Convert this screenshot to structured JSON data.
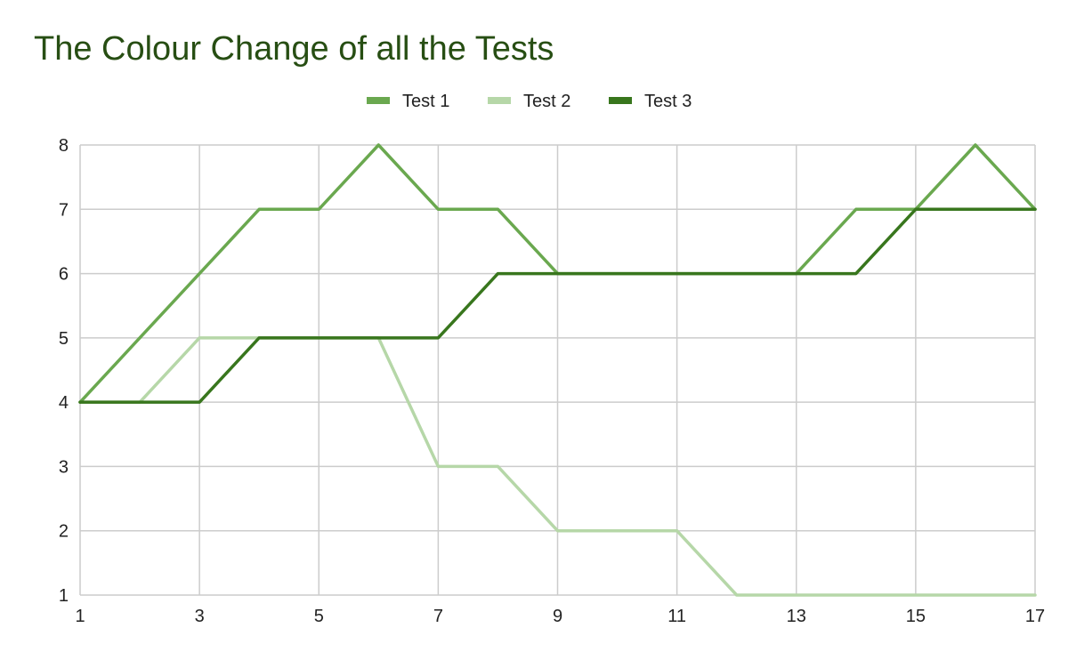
{
  "chart_data": {
    "type": "line",
    "title": "The Colour Change of all the Tests",
    "xlabel": "",
    "ylabel": "",
    "x": [
      1,
      2,
      3,
      4,
      5,
      6,
      7,
      8,
      9,
      10,
      11,
      12,
      13,
      14,
      15,
      16,
      17
    ],
    "x_tick_labels": [
      "1",
      "3",
      "5",
      "7",
      "9",
      "11",
      "13",
      "15",
      "17"
    ],
    "y_tick_labels": [
      "1",
      "2",
      "3",
      "4",
      "5",
      "6",
      "7",
      "8"
    ],
    "xlim": [
      1,
      17
    ],
    "ylim": [
      1,
      8
    ],
    "grid": true,
    "legend_position": "top",
    "series": [
      {
        "name": "Test 1",
        "color": "#6aa84f",
        "values": [
          4,
          5,
          6,
          7,
          7,
          8,
          7,
          7,
          6,
          6,
          6,
          6,
          6,
          7,
          7,
          8,
          7
        ]
      },
      {
        "name": "Test 2",
        "color": "#b6d7a8",
        "values": [
          4,
          4,
          5,
          5,
          5,
          5,
          3,
          3,
          2,
          2,
          2,
          1,
          1,
          1,
          1,
          1,
          1
        ]
      },
      {
        "name": "Test 3",
        "color": "#38761d",
        "values": [
          4,
          4,
          4,
          5,
          5,
          5,
          5,
          6,
          6,
          6,
          6,
          6,
          6,
          6,
          7,
          7,
          7
        ]
      }
    ],
    "title_color": "#274e13"
  }
}
